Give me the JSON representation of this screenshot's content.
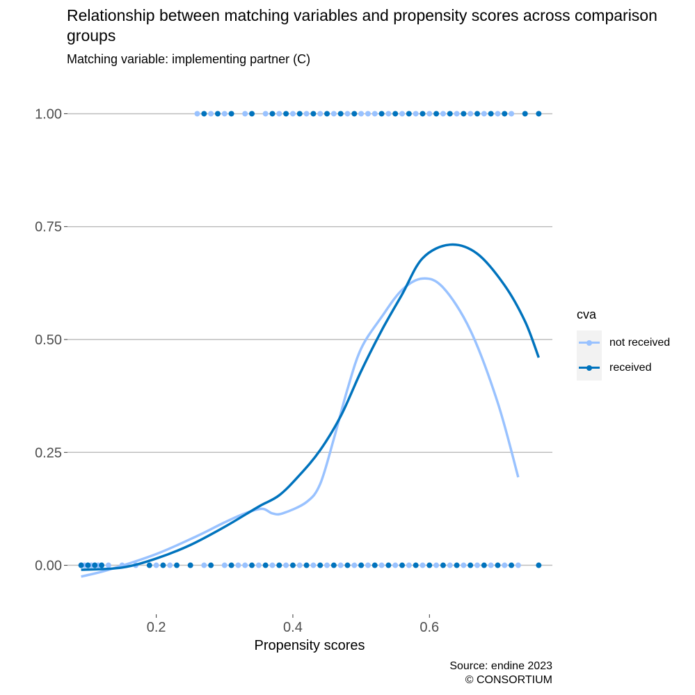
{
  "chart_data": {
    "type": "scatter",
    "title": "Relationship between matching variables and propensity scores across comparison groups",
    "subtitle": "Matching variable: implementing partner (C)",
    "xlabel": "Propensity scores",
    "ylabel": "",
    "xlim": [
      0.07,
      0.78
    ],
    "ylim": [
      -0.07,
      1.07
    ],
    "x_ticks": [
      0.2,
      0.4,
      0.6
    ],
    "x_tick_labels": [
      "0.2",
      "0.4",
      "0.6"
    ],
    "y_ticks": [
      0,
      0.25,
      0.5,
      0.75,
      1
    ],
    "y_tick_labels": [
      "0.00",
      "0.25",
      "0.50",
      "0.75",
      "1.00"
    ],
    "grid": "horizontal",
    "legend": {
      "title": "cva",
      "position": "right",
      "entries": [
        "not received",
        "received"
      ]
    },
    "caption": [
      "Source: endine 2023",
      "© CONSORTIUM"
    ],
    "series": [
      {
        "name": "not received",
        "color": "#99c2ff",
        "points_y0": [
          0.09,
          0.095,
          0.1,
          0.105,
          0.11,
          0.115,
          0.12,
          0.13,
          0.15,
          0.17,
          0.2,
          0.22,
          0.25,
          0.27,
          0.3,
          0.32,
          0.33,
          0.35,
          0.37,
          0.39,
          0.41,
          0.43,
          0.45,
          0.47,
          0.49,
          0.5,
          0.51,
          0.53,
          0.55,
          0.57,
          0.59,
          0.61,
          0.63,
          0.65,
          0.67,
          0.69,
          0.71,
          0.73
        ],
        "points_y1": [
          0.26,
          0.28,
          0.3,
          0.33,
          0.36,
          0.38,
          0.4,
          0.42,
          0.44,
          0.46,
          0.48,
          0.5,
          0.51,
          0.52,
          0.54,
          0.56,
          0.58,
          0.6,
          0.62,
          0.64,
          0.66,
          0.68,
          0.7,
          0.72
        ],
        "smooth": [
          [
            0.09,
            -0.025
          ],
          [
            0.13,
            -0.01
          ],
          [
            0.2,
            0.025
          ],
          [
            0.26,
            0.065
          ],
          [
            0.3,
            0.095
          ],
          [
            0.33,
            0.115
          ],
          [
            0.355,
            0.125
          ],
          [
            0.37,
            0.115
          ],
          [
            0.385,
            0.115
          ],
          [
            0.42,
            0.14
          ],
          [
            0.44,
            0.18
          ],
          [
            0.46,
            0.28
          ],
          [
            0.48,
            0.39
          ],
          [
            0.5,
            0.48
          ],
          [
            0.53,
            0.55
          ],
          [
            0.56,
            0.61
          ],
          [
            0.59,
            0.635
          ],
          [
            0.62,
            0.615
          ],
          [
            0.66,
            0.52
          ],
          [
            0.7,
            0.36
          ],
          [
            0.73,
            0.195
          ]
        ]
      },
      {
        "name": "received",
        "color": "#0073bd",
        "points_y0": [
          0.09,
          0.1,
          0.11,
          0.12,
          0.19,
          0.21,
          0.23,
          0.25,
          0.28,
          0.31,
          0.34,
          0.36,
          0.38,
          0.4,
          0.42,
          0.44,
          0.46,
          0.48,
          0.5,
          0.52,
          0.54,
          0.56,
          0.58,
          0.6,
          0.62,
          0.64,
          0.66,
          0.68,
          0.7,
          0.72,
          0.76
        ],
        "points_y1": [
          0.27,
          0.29,
          0.31,
          0.34,
          0.37,
          0.39,
          0.41,
          0.43,
          0.45,
          0.47,
          0.49,
          0.53,
          0.55,
          0.57,
          0.59,
          0.61,
          0.63,
          0.65,
          0.67,
          0.69,
          0.71,
          0.74,
          0.76
        ],
        "smooth": [
          [
            0.09,
            -0.01
          ],
          [
            0.15,
            -0.005
          ],
          [
            0.2,
            0.015
          ],
          [
            0.25,
            0.045
          ],
          [
            0.3,
            0.085
          ],
          [
            0.35,
            0.13
          ],
          [
            0.38,
            0.155
          ],
          [
            0.41,
            0.2
          ],
          [
            0.44,
            0.255
          ],
          [
            0.47,
            0.33
          ],
          [
            0.5,
            0.43
          ],
          [
            0.53,
            0.52
          ],
          [
            0.56,
            0.6
          ],
          [
            0.59,
            0.68
          ],
          [
            0.63,
            0.71
          ],
          [
            0.67,
            0.69
          ],
          [
            0.71,
            0.62
          ],
          [
            0.74,
            0.54
          ],
          [
            0.76,
            0.46
          ]
        ]
      }
    ]
  }
}
